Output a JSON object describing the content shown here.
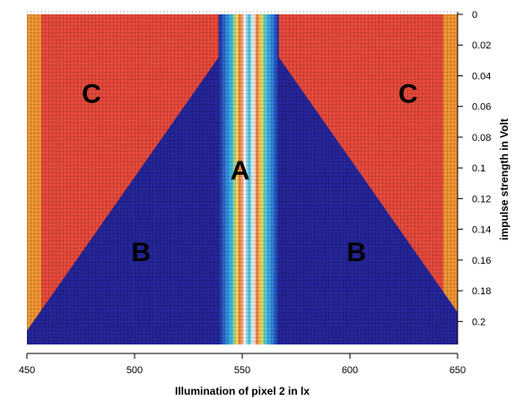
{
  "chart_data": {
    "type": "heatmap",
    "title": "",
    "xlabel": "Illumination of pixel 2 in lx",
    "ylabel": "impulse strength in Volt",
    "xlim": [
      450,
      650
    ],
    "ylim": [
      0,
      0.215
    ],
    "x_ticks": [
      "450",
      "500",
      "550",
      "600",
      "650"
    ],
    "x_tick_values": [
      450,
      500,
      550,
      600,
      650
    ],
    "y_ticks": [
      "0",
      "0.02",
      "0.04",
      "0.06",
      "0.08",
      "0.1",
      "0.12",
      "0.14",
      "0.16",
      "0.18",
      "0.2"
    ],
    "y_tick_values": [
      0,
      0.02,
      0.04,
      0.06,
      0.08,
      0.1,
      0.12,
      0.14,
      0.16,
      0.18,
      0.2
    ],
    "y_axis_side": "right",
    "y_axis_inverted": true,
    "grid": true,
    "center_x": 553,
    "boundary_slope_volt_per_lx": 0.002,
    "colors": {
      "region_A": "#3fc0e0",
      "region_B": "#25259a",
      "region_C": "#e84a3c",
      "edge_C": "#f5b030"
    },
    "regions": [
      {
        "label": "A",
        "x": 549,
        "y": 0.102
      },
      {
        "label": "B",
        "x": 503,
        "y": 0.155
      },
      {
        "label": "B",
        "x": 603,
        "y": 0.155
      },
      {
        "label": "C",
        "x": 480,
        "y": 0.052
      },
      {
        "label": "C",
        "x": 627,
        "y": 0.052
      }
    ]
  }
}
